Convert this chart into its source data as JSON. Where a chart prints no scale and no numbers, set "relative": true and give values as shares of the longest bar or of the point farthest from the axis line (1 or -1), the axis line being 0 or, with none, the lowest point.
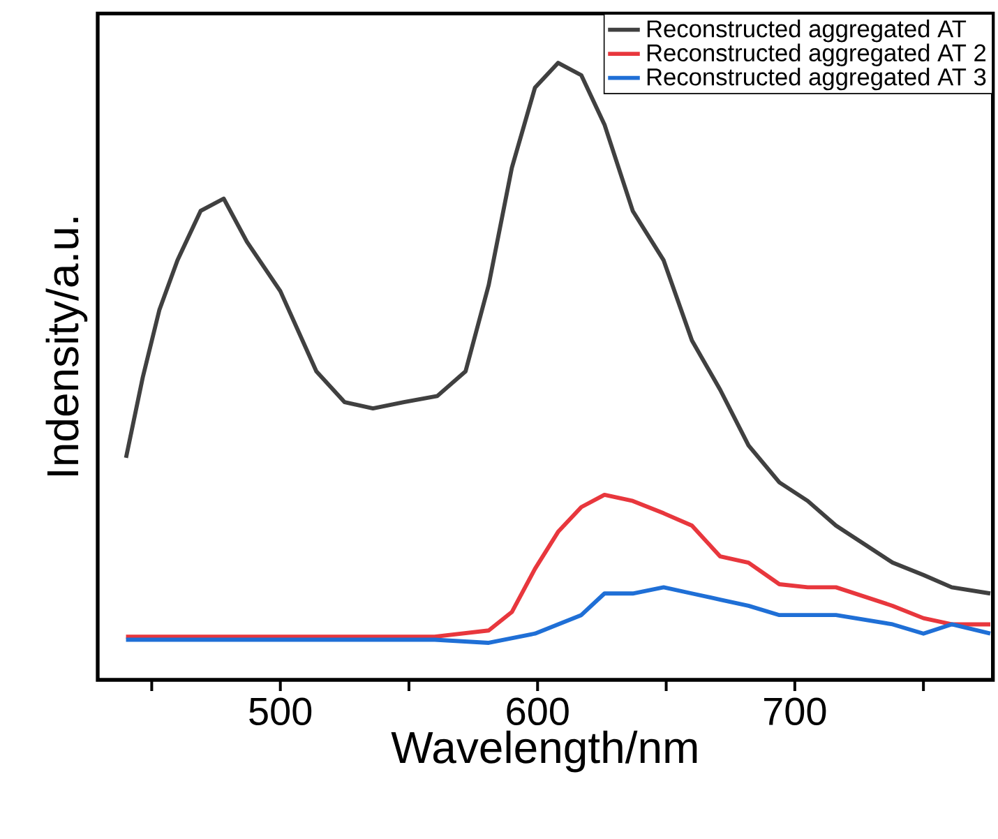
{
  "chart_data": {
    "type": "line",
    "xlabel": "Wavelength/nm",
    "ylabel": "Indensity/a.u.",
    "relative": true,
    "xlim": [
      429,
      777
    ],
    "xticks": [
      {
        "value": 450,
        "label": null
      },
      500,
      {
        "value": 550,
        "label": null
      },
      600,
      {
        "value": 650,
        "label": null
      },
      700,
      {
        "value": 750,
        "label": null
      }
    ],
    "legend": "top right",
    "line_style": "solid",
    "series": [
      {
        "name": "Reconstructed aggregated AT",
        "color": "#404040",
        "x": [
          440,
          446.5,
          453,
          460,
          469,
          478,
          487,
          500,
          514,
          525,
          536,
          548,
          561,
          572,
          581,
          590,
          599,
          608,
          617,
          626,
          637,
          649,
          660,
          671,
          682,
          694,
          705,
          716,
          727,
          738,
          750,
          761,
          776
        ],
        "values": [
          0.36,
          0.49,
          0.6,
          0.68,
          0.76,
          0.78,
          0.71,
          0.63,
          0.5,
          0.45,
          0.44,
          0.45,
          0.46,
          0.5,
          0.64,
          0.83,
          0.96,
          1.0,
          0.98,
          0.9,
          0.76,
          0.68,
          0.55,
          0.47,
          0.38,
          0.32,
          0.29,
          0.25,
          0.22,
          0.19,
          0.17,
          0.15,
          0.14
        ]
      },
      {
        "name": "Reconstructed aggregated AT 2",
        "color": "#e8373d",
        "x": [
          440,
          470,
          500,
          530,
          560,
          581,
          590,
          599,
          608,
          617,
          626,
          637,
          649,
          660,
          671,
          682,
          694,
          705,
          716,
          738,
          750,
          761,
          776
        ],
        "values": [
          0.07,
          0.07,
          0.07,
          0.07,
          0.07,
          0.08,
          0.11,
          0.18,
          0.24,
          0.28,
          0.3,
          0.29,
          0.27,
          0.25,
          0.2,
          0.19,
          0.155,
          0.15,
          0.15,
          0.12,
          0.1,
          0.09,
          0.09
        ]
      },
      {
        "name": "Reconstructed aggregated AT 3",
        "color": "#1f6fd6",
        "x": [
          440,
          470,
          500,
          530,
          560,
          581,
          599,
          608,
          617,
          626,
          637,
          649,
          660,
          671,
          682,
          694,
          716,
          738,
          750,
          761,
          776
        ],
        "values": [
          0.065,
          0.065,
          0.065,
          0.065,
          0.065,
          0.06,
          0.075,
          0.09,
          0.105,
          0.14,
          0.14,
          0.15,
          0.14,
          0.13,
          0.12,
          0.105,
          0.105,
          0.09,
          0.075,
          0.09,
          0.075
        ]
      }
    ]
  }
}
